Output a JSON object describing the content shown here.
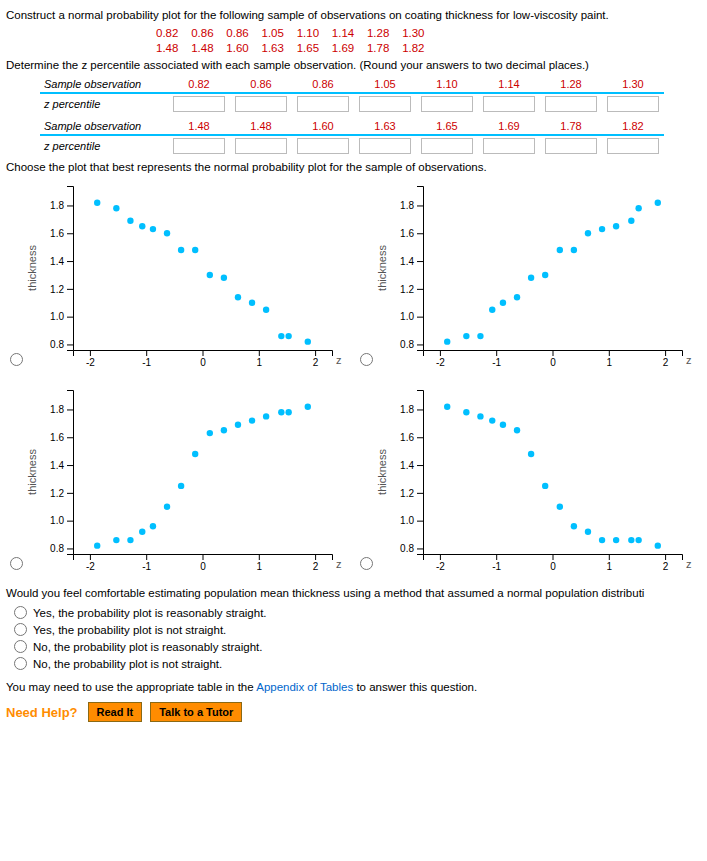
{
  "title": "Construct a normal probability plot for the following sample of observations on coating thickness for low-viscosity paint.",
  "data_rows": [
    "0.82    0.86    0.86    1.05    1.10    1.14    1.28    1.30",
    "1.48    1.48    1.60    1.63    1.65    1.69    1.78    1.82"
  ],
  "determine_text": "Determine the z percentile associated with each sample observation. (Round your answers to two decimal places.)",
  "tables": [
    {
      "observation_label": "Sample observation",
      "observations": [
        "0.82",
        "0.86",
        "0.86",
        "1.05",
        "1.10",
        "1.14",
        "1.28",
        "1.30"
      ],
      "z_label": "z percentile"
    },
    {
      "observation_label": "Sample observation",
      "observations": [
        "1.48",
        "1.48",
        "1.60",
        "1.63",
        "1.65",
        "1.69",
        "1.78",
        "1.82"
      ],
      "z_label": "z percentile"
    }
  ],
  "choose_text": "Choose the plot that best represents the normal probability plot for the sample of observations.",
  "chart_data": [
    {
      "type": "scatter",
      "color": "#00BFFF",
      "xlabel": "z",
      "ylabel": "thickness",
      "grid": false,
      "x": [
        -1.87,
        -1.53,
        -1.28,
        -1.07,
        -0.88,
        -0.63,
        -0.38,
        -0.13,
        0.13,
        0.38,
        0.63,
        0.88,
        1.13,
        1.4,
        1.53,
        1.87
      ],
      "values": [
        1.82,
        1.78,
        1.69,
        1.65,
        1.63,
        1.6,
        1.48,
        1.48,
        1.3,
        1.28,
        1.14,
        1.1,
        1.05,
        0.86,
        0.86,
        0.82
      ],
      "xlim": [
        -2.3,
        2.3
      ],
      "ylim": [
        0.76,
        1.94
      ],
      "xticks": [
        -2,
        -1,
        0,
        1,
        2
      ],
      "yticks": [
        0.8,
        {
          "value": 1.0,
          "label": "1.0"
        },
        1.2,
        1.4,
        1.6,
        1.8
      ]
    },
    {
      "type": "scatter",
      "color": "#00BFFF",
      "xlabel": "z",
      "ylabel": "thickness",
      "grid": false,
      "x": [
        -1.87,
        -1.53,
        -1.28,
        -1.07,
        -0.88,
        -0.63,
        -0.38,
        -0.13,
        0.13,
        0.38,
        0.63,
        0.88,
        1.13,
        1.4,
        1.53,
        1.87
      ],
      "values": [
        0.82,
        0.86,
        0.86,
        1.05,
        1.1,
        1.14,
        1.28,
        1.3,
        1.48,
        1.48,
        1.6,
        1.63,
        1.65,
        1.69,
        1.78,
        1.82
      ],
      "xlim": [
        -2.3,
        2.3
      ],
      "ylim": [
        0.76,
        1.94
      ],
      "xticks": [
        -2,
        -1,
        0,
        1,
        2
      ],
      "yticks": [
        0.8,
        {
          "value": 1.0,
          "label": "1.0"
        },
        1.2,
        1.4,
        1.6,
        1.8
      ]
    },
    {
      "type": "scatter",
      "color": "#00BFFF",
      "xlabel": "z",
      "ylabel": "thickness",
      "grid": false,
      "x": [
        -1.87,
        -1.53,
        -1.28,
        -1.07,
        -0.88,
        -0.63,
        -0.38,
        -0.13,
        0.13,
        0.38,
        0.63,
        0.88,
        1.13,
        1.4,
        1.53,
        1.87
      ],
      "values": [
        0.82,
        0.86,
        0.86,
        0.92,
        0.96,
        1.1,
        1.25,
        1.48,
        1.63,
        1.65,
        1.69,
        1.72,
        1.75,
        1.78,
        1.78,
        1.82
      ],
      "xlim": [
        -2.3,
        2.3
      ],
      "ylim": [
        0.76,
        1.94
      ],
      "xticks": [
        -2,
        -1,
        0,
        1,
        2
      ],
      "yticks": [
        0.8,
        {
          "value": 1.0,
          "label": "1.0"
        },
        1.2,
        1.4,
        1.6,
        1.8
      ]
    },
    {
      "type": "scatter",
      "color": "#00BFFF",
      "xlabel": "z",
      "ylabel": "thickness",
      "grid": false,
      "x": [
        -1.87,
        -1.53,
        -1.28,
        -1.07,
        -0.88,
        -0.63,
        -0.38,
        -0.13,
        0.13,
        0.38,
        0.63,
        0.88,
        1.13,
        1.4,
        1.53,
        1.87
      ],
      "values": [
        1.82,
        1.78,
        1.75,
        1.72,
        1.69,
        1.65,
        1.48,
        1.25,
        1.1,
        0.96,
        0.92,
        0.86,
        0.86,
        0.86,
        0.86,
        0.82
      ],
      "xlim": [
        -2.3,
        2.3
      ],
      "ylim": [
        0.76,
        1.94
      ],
      "xticks": [
        -2,
        -1,
        0,
        1,
        2
      ],
      "yticks": [
        0.8,
        {
          "value": 1.0,
          "label": "1.0"
        },
        1.2,
        1.4,
        1.6,
        1.8
      ]
    }
  ],
  "comfort_text": "Would you feel comfortable estimating population mean thickness using a method that assumed a normal population distributi",
  "options": [
    "Yes, the probability plot is reasonably straight.",
    "Yes, the probability plot is not straight.",
    "No, the probability plot is reasonably straight.",
    "No, the probability plot is not straight."
  ],
  "appendix_pre": "You may need to use the appropriate table in the ",
  "appendix_link": "Appendix of Tables",
  "appendix_post": " to answer this question.",
  "need_help": "Need Help?",
  "buttons": [
    "Read It",
    "Talk to a Tutor"
  ],
  "colors": {
    "observation": "#CC0000",
    "separator": "#00BFFF",
    "link": "#0066CC",
    "help": "#FF8C00",
    "button": "#FF8C00",
    "button_border": "#8B6914"
  }
}
